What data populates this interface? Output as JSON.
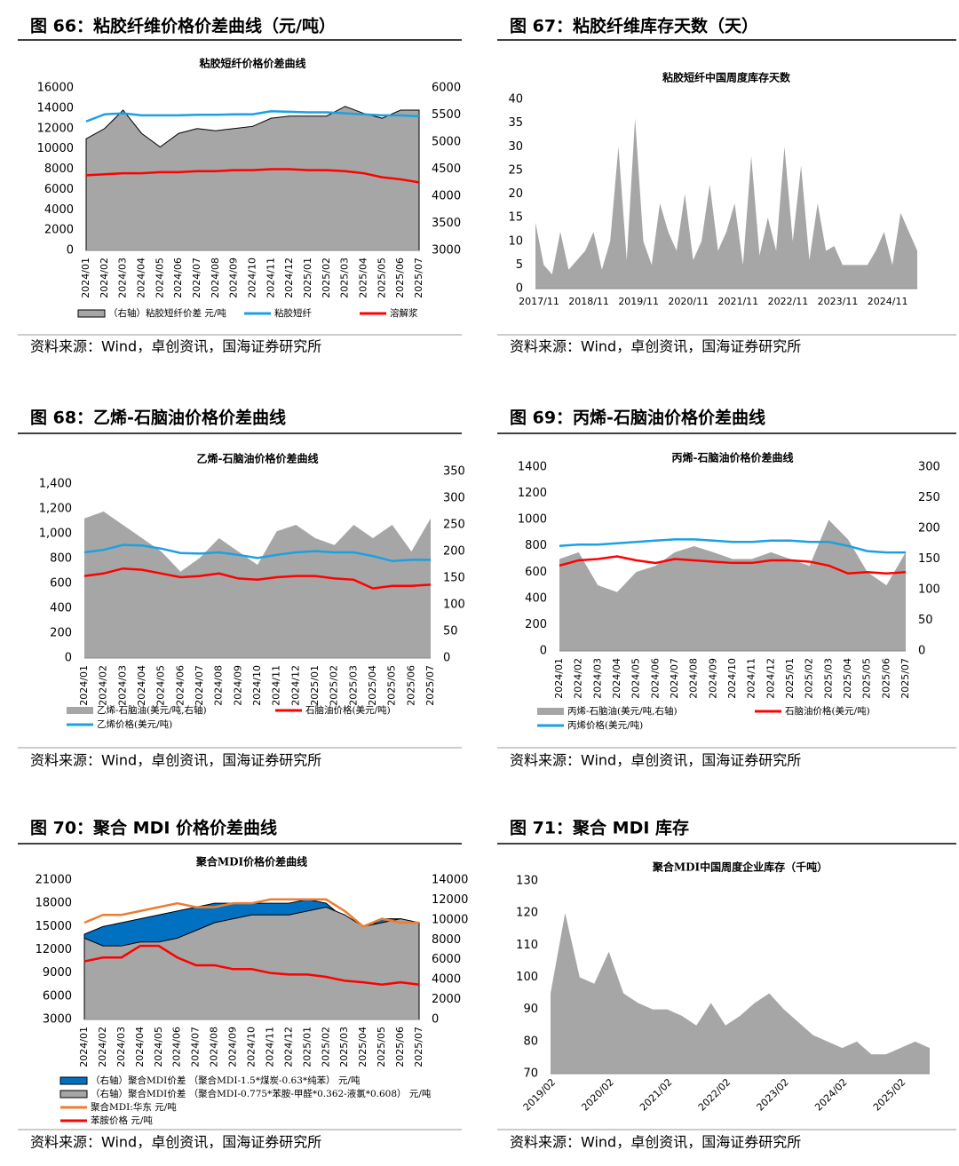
{
  "chart_data": [
    {
      "type": "combo",
      "figure": "图 66：粘胶纤维价格价差曲线（元/吨）",
      "source": "资料来源：Wind，卓创资讯，国海证券研究所",
      "title": "粘胶短纤价格价差曲线",
      "categories": [
        "2024/01",
        "2024/02",
        "2024/03",
        "2024/04",
        "2024/05",
        "2024/06",
        "2024/07",
        "2024/08",
        "2024/09",
        "2024/10",
        "2024/11",
        "2024/12",
        "2025/01",
        "2025/02",
        "2025/03",
        "2025/04",
        "2025/05",
        "2025/06",
        "2025/07"
      ],
      "ylim": [
        0,
        16000
      ],
      "yticks": [
        0,
        2000,
        4000,
        6000,
        8000,
        10000,
        12000,
        14000,
        16000
      ],
      "y2lim": [
        3000,
        6000
      ],
      "y2ticks": [
        3000,
        3500,
        4000,
        4500,
        5000,
        5500,
        6000
      ],
      "series": [
        {
          "name": "（右轴）粘胶短纤价差  元/吨",
          "kind": "area",
          "axis": "y2",
          "color": "#a6a6a6",
          "edgecolor": "#000000",
          "values": [
            5060,
            5250,
            5590,
            5160,
            4910,
            5160,
            5250,
            5210,
            5250,
            5290,
            5440,
            5480,
            5480,
            5480,
            5660,
            5530,
            5440,
            5590,
            5590
          ]
        },
        {
          "name": "粘胶短纤",
          "kind": "line",
          "color": "#1ba1e2",
          "values": [
            12700,
            13400,
            13500,
            13300,
            13300,
            13300,
            13350,
            13350,
            13400,
            13400,
            13700,
            13650,
            13600,
            13600,
            13500,
            13400,
            13300,
            13300,
            13200
          ]
        },
        {
          "name": "溶解浆",
          "kind": "line",
          "color": "#ff0000",
          "values": [
            7400,
            7500,
            7600,
            7600,
            7700,
            7700,
            7800,
            7800,
            7900,
            7900,
            8000,
            8000,
            7900,
            7900,
            7800,
            7600,
            7200,
            7000,
            6700
          ]
        }
      ]
    },
    {
      "type": "area",
      "figure": "图 67：粘胶纤维库存天数（天）",
      "source": "资料来源：Wind，卓创资讯，国海证券研究所",
      "title": "粘胶短纤中国周度库存天数",
      "categories": [
        "2017/11",
        null,
        null,
        null,
        null,
        null,
        "2018/11",
        null,
        null,
        null,
        null,
        null,
        "2019/11",
        null,
        null,
        null,
        null,
        null,
        "2020/11",
        null,
        null,
        null,
        null,
        null,
        "2021/11",
        null,
        null,
        null,
        null,
        null,
        "2022/11",
        null,
        null,
        null,
        null,
        null,
        "2023/11",
        null,
        null,
        null,
        null,
        null,
        "2024/11",
        null,
        null,
        null,
        null
      ],
      "ylim": [
        0,
        40
      ],
      "yticks": [
        0,
        5,
        10,
        15,
        20,
        25,
        30,
        35,
        40
      ],
      "series": [
        {
          "name": "粘胶短纤中国周度库存天数",
          "kind": "area",
          "color": "#a6a6a6",
          "values": [
            14,
            5,
            3,
            12,
            4,
            6,
            8,
            12,
            4,
            10,
            30,
            6,
            36,
            10,
            5,
            18,
            12,
            8,
            20,
            6,
            10,
            22,
            8,
            12,
            18,
            5,
            28,
            7,
            15,
            8,
            30,
            10,
            26,
            6,
            18,
            8,
            9,
            5,
            5,
            5,
            5,
            8,
            12,
            5,
            16,
            12,
            8
          ]
        }
      ]
    },
    {
      "type": "combo",
      "figure": "图 68：乙烯-石脑油价格价差曲线",
      "source": "资料来源：Wind，卓创资讯，国海证券研究所",
      "title": "乙烯-石脑油价格价差曲线",
      "categories": [
        "2024/01",
        "2024/02",
        "2024/03",
        "2024/04",
        "2024/05",
        "2024/06",
        "2024/07",
        "2024/08",
        "2024/09",
        "2024/10",
        "2024/11",
        "2024/12",
        "2025/01",
        "2025/02",
        "2025/03",
        "2025/04",
        "2025/05",
        "2025/06",
        "2025/07"
      ],
      "ylim": [
        0,
        1500
      ],
      "yticks": [
        0,
        200,
        400,
        600,
        800,
        {
          "value": 1000,
          "label": "1,000"
        },
        {
          "value": 1200,
          "label": "1,200"
        },
        {
          "value": 1400,
          "label": "1,400"
        }
      ],
      "y2lim": [
        0,
        350
      ],
      "y2ticks": [
        0,
        50,
        100,
        150,
        200,
        250,
        300,
        350
      ],
      "series": [
        {
          "name": "乙烯-石脑油(美元/吨,右轴)",
          "kind": "area",
          "axis": "y2",
          "color": "#a6a6a6",
          "values": [
            262,
            275,
            250,
            225,
            200,
            162,
            188,
            225,
            200,
            175,
            238,
            250,
            225,
            212,
            250,
            225,
            250,
            200,
            262
          ]
        },
        {
          "name": "石脑油价格(美元/吨)",
          "kind": "line",
          "color": "#ff0000",
          "values": [
            660,
            680,
            720,
            710,
            680,
            650,
            660,
            680,
            640,
            630,
            650,
            660,
            660,
            640,
            630,
            560,
            580,
            580,
            590
          ]
        },
        {
          "name": "乙烯价格(美元/吨)",
          "kind": "line",
          "color": "#1ba1e2",
          "values": [
            850,
            870,
            910,
            905,
            880,
            845,
            840,
            850,
            830,
            805,
            830,
            850,
            860,
            850,
            850,
            820,
            780,
            790,
            790
          ]
        }
      ]
    },
    {
      "type": "combo",
      "figure": "图 69：丙烯-石脑油价格价差曲线",
      "source": "资料来源：Wind，卓创资讯，国海证券研究所",
      "title": "丙烯-石脑油价格价差曲线",
      "categories": [
        "2024/01",
        "2024/02",
        "2024/03",
        "2024/04",
        "2024/05",
        "2024/06",
        "2024/07",
        "2024/08",
        "2024/09",
        "2024/10",
        "2024/11",
        "2024/12",
        "2025/01",
        "2025/02",
        "2025/03",
        "2025/04",
        "2025/05",
        "2025/06",
        "2025/07"
      ],
      "ylim": [
        0,
        1400
      ],
      "yticks": [
        0,
        200,
        400,
        600,
        800,
        1000,
        1200,
        1400
      ],
      "y2lim": [
        0,
        300
      ],
      "y2ticks": [
        0,
        50,
        100,
        150,
        200,
        250,
        300
      ],
      "series": [
        {
          "name": "丙烯-石脑油(美元/吨,右轴)",
          "kind": "area",
          "axis": "y2",
          "color": "#a6a6a6",
          "values": [
            150,
            161,
            107,
            96,
            129,
            139,
            161,
            171,
            161,
            150,
            150,
            161,
            150,
            139,
            214,
            182,
            129,
            107,
            161
          ]
        },
        {
          "name": "石脑油价格(美元/吨)",
          "kind": "line",
          "color": "#ff0000",
          "values": [
            650,
            690,
            700,
            720,
            690,
            670,
            700,
            690,
            680,
            670,
            670,
            690,
            690,
            680,
            650,
            590,
            600,
            590,
            600
          ]
        },
        {
          "name": "丙烯价格(美元/吨)",
          "kind": "line",
          "color": "#1ba1e2",
          "values": [
            800,
            810,
            810,
            820,
            830,
            840,
            850,
            850,
            840,
            830,
            830,
            840,
            840,
            830,
            830,
            800,
            760,
            750,
            750
          ]
        }
      ]
    },
    {
      "type": "combo",
      "figure": "图 70：聚合 MDI 价格价差曲线",
      "source": "资料来源：Wind，卓创资讯，国海证券研究所",
      "title": "聚合MDI价格价差曲线",
      "categories": [
        "2024/01",
        "2024/02",
        "2024/03",
        "2024/04",
        "2024/05",
        "2024/06",
        "2024/07",
        "2024/08",
        "2024/09",
        "2024/10",
        "2024/11",
        "2024/12",
        "2025/01",
        "2025/02",
        "2025/03",
        "2025/04",
        "2025/05",
        "2025/06",
        "2025/07"
      ],
      "ylim": [
        3000,
        21000
      ],
      "yticks": [
        3000,
        6000,
        9000,
        12000,
        15000,
        18000,
        21000
      ],
      "y2lim": [
        0,
        14000
      ],
      "y2ticks": [
        0,
        2000,
        4000,
        6000,
        8000,
        10000,
        12000,
        14000
      ],
      "series": [
        {
          "name": "（右轴）聚合MDI价差 （聚合MDI-1.5*煤炭-0.63*纯苯） 元/吨",
          "kind": "area",
          "axis": "y2",
          "color": "#0070c0",
          "edgecolor": "#000000",
          "values": [
            8560,
            9330,
            9720,
            10110,
            10500,
            10890,
            11280,
            11670,
            11670,
            11670,
            11670,
            11670,
            12060,
            11670,
            10110,
            8940,
            10110,
            10110,
            9720
          ]
        },
        {
          "name": "（右轴）聚合MDI价差 （聚合MDI-0.775*苯胺-甲醛*0.362-液氯*0.608） 元/吨",
          "kind": "area",
          "axis": "y2",
          "color": "#a6a6a6",
          "edgecolor": "#000000",
          "values": [
            8170,
            7390,
            7390,
            7780,
            7780,
            8170,
            8940,
            9720,
            10110,
            10500,
            10500,
            10500,
            10890,
            11280,
            10500,
            9330,
            9720,
            10110,
            9720
          ]
        },
        {
          "name": "聚合MDI:华东  元/吨",
          "kind": "line",
          "color": "#ed7d31",
          "values": [
            15500,
            16500,
            16500,
            17000,
            17500,
            18000,
            17500,
            17500,
            18000,
            18000,
            18500,
            18500,
            18500,
            18500,
            17000,
            15000,
            16000,
            15500,
            15500
          ]
        },
        {
          "name": "苯胺价格  元/吨",
          "kind": "line",
          "color": "#ff0000",
          "values": [
            10500,
            11000,
            11000,
            12500,
            12500,
            11000,
            10000,
            10000,
            9500,
            9500,
            9000,
            8800,
            8800,
            8500,
            8000,
            7800,
            7500,
            7800,
            7500
          ]
        }
      ]
    },
    {
      "type": "area",
      "figure": "图 71：聚合 MDI 库存",
      "source": "资料来源：Wind，卓创资讯，国海证券研究所",
      "title": "聚合MDI中国周度企业库存（千吨）",
      "categories": [
        "2019/02",
        null,
        null,
        null,
        "2020/02",
        null,
        null,
        null,
        "2021/02",
        null,
        null,
        null,
        "2022/02",
        null,
        null,
        null,
        "2023/02",
        null,
        null,
        null,
        "2024/02",
        null,
        null,
        null,
        "2025/02",
        null,
        null
      ],
      "ylim": [
        70,
        130
      ],
      "yticks": [
        70,
        80,
        90,
        100,
        110,
        120,
        130
      ],
      "series": [
        {
          "name": "聚合MDI中国周度企业库存（千吨）",
          "kind": "area",
          "color": "#a6a6a6",
          "values": [
            95,
            120,
            100,
            98,
            108,
            95,
            92,
            90,
            90,
            88,
            85,
            92,
            85,
            88,
            92,
            95,
            90,
            86,
            82,
            80,
            78,
            80,
            76,
            76,
            78,
            80,
            78
          ]
        }
      ]
    }
  ]
}
